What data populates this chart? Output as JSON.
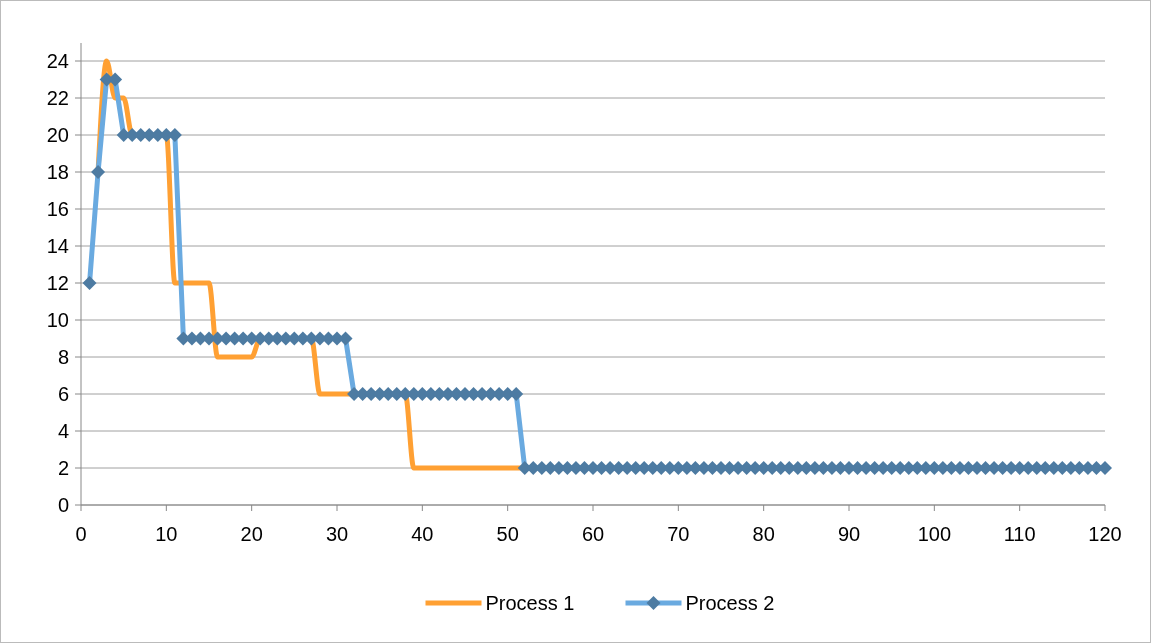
{
  "chart_data": {
    "type": "line",
    "x": [
      1,
      2,
      3,
      4,
      5,
      6,
      7,
      8,
      9,
      10,
      11,
      12,
      13,
      14,
      15,
      16,
      17,
      18,
      19,
      20,
      21,
      22,
      23,
      24,
      25,
      26,
      27,
      28,
      29,
      30,
      31,
      32,
      33,
      34,
      35,
      36,
      37,
      38,
      39,
      40,
      41,
      42,
      43,
      44,
      45,
      46,
      47,
      48,
      49,
      50,
      51,
      52,
      53,
      54,
      55,
      56,
      57,
      58,
      59,
      60,
      61,
      62,
      63,
      64,
      65,
      66,
      67,
      68,
      69,
      70,
      71,
      72,
      73,
      74,
      75,
      76,
      77,
      78,
      79,
      80,
      81,
      82,
      83,
      84,
      85,
      86,
      87,
      88,
      89,
      90,
      91,
      92,
      93,
      94,
      95,
      96,
      97,
      98,
      99,
      100,
      101,
      102,
      103,
      104,
      105,
      106,
      107,
      108,
      109,
      110,
      111,
      112,
      113,
      114,
      115,
      116,
      117,
      118,
      119,
      120
    ],
    "series": [
      {
        "name": "Process 1",
        "color": "#ffa033",
        "marker": "none",
        "values": [
          null,
          18,
          24,
          22,
          22,
          20,
          null,
          null,
          null,
          20,
          12,
          12,
          12,
          12,
          12,
          8,
          8,
          8,
          8,
          8,
          9,
          null,
          null,
          null,
          null,
          null,
          9,
          6,
          6,
          6,
          6,
          6,
          null,
          null,
          null,
          null,
          null,
          6,
          2,
          2,
          2,
          2,
          2,
          2,
          2,
          2,
          2,
          2,
          2,
          2,
          2,
          2,
          null,
          null,
          null,
          null,
          null,
          null,
          null,
          null,
          null,
          null,
          null,
          null,
          null,
          null,
          null,
          null,
          null,
          null,
          null,
          null,
          null,
          null,
          null,
          null,
          null,
          null,
          null,
          null,
          null,
          null,
          null,
          null,
          null,
          null,
          null,
          null,
          null,
          null,
          null,
          null,
          null,
          null,
          null,
          null,
          null,
          null,
          null,
          null,
          null,
          null,
          null,
          null,
          null,
          null,
          null,
          null,
          null,
          null,
          null,
          null,
          null,
          null,
          null,
          null,
          null,
          null,
          null,
          null
        ]
      },
      {
        "name": "Process 2",
        "color": "#6aaae0",
        "marker": "diamond",
        "values": [
          12,
          18,
          23,
          23,
          20,
          20,
          20,
          20,
          20,
          20,
          20,
          9,
          9,
          9,
          9,
          9,
          9,
          9,
          9,
          9,
          9,
          9,
          9,
          9,
          9,
          9,
          9,
          9,
          9,
          9,
          9,
          6,
          6,
          6,
          6,
          6,
          6,
          6,
          6,
          6,
          6,
          6,
          6,
          6,
          6,
          6,
          6,
          6,
          6,
          6,
          6,
          2,
          2,
          2,
          2,
          2,
          2,
          2,
          2,
          2,
          2,
          2,
          2,
          2,
          2,
          2,
          2,
          2,
          2,
          2,
          2,
          2,
          2,
          2,
          2,
          2,
          2,
          2,
          2,
          2,
          2,
          2,
          2,
          2,
          2,
          2,
          2,
          2,
          2,
          2,
          2,
          2,
          2,
          2,
          2,
          2,
          2,
          2,
          2,
          2,
          2,
          2,
          2,
          2,
          2,
          2,
          2,
          2,
          2,
          2,
          2,
          2,
          2,
          2,
          2,
          2,
          2,
          2,
          2,
          2
        ]
      }
    ],
    "xlim": [
      0,
      120
    ],
    "xticks": [
      0,
      10,
      20,
      30,
      40,
      50,
      60,
      70,
      80,
      90,
      100,
      110,
      120
    ],
    "ylim": [
      0,
      24
    ],
    "yticks": [
      0,
      2,
      4,
      6,
      8,
      10,
      12,
      14,
      16,
      18,
      20,
      22,
      24
    ],
    "grid": "y",
    "legend": "bottom"
  }
}
